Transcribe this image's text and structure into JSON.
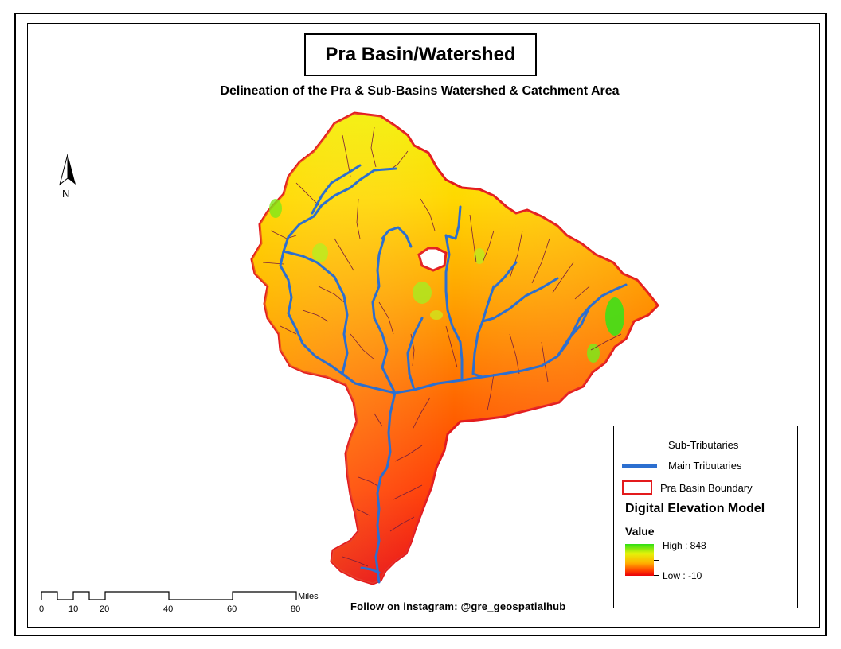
{
  "title": "Pra Basin/Watershed",
  "subtitle": "Delineation of the Pra & Sub-Basins Watershed & Catchment Area",
  "north_arrow": {
    "label": "N",
    "icon": "north-arrow-icon"
  },
  "scale_bar": {
    "labels": [
      "0",
      "10",
      "20",
      "40",
      "60",
      "80"
    ],
    "unit": "Miles"
  },
  "credit": "Follow on instagram: @gre_geospatialhub",
  "legend": {
    "sub_tributaries": "Sub-Tributaries",
    "main_tributaries": "Main Tributaries",
    "boundary": "Pra Basin Boundary",
    "dem_title": "Digital Elevation Model",
    "value_label": "Value",
    "high": "High : 848",
    "low": "Low : -10"
  },
  "colors": {
    "boundary": "#e31a1c",
    "main_tributaries": "#2c6fd0",
    "sub_tributaries": "#7a1f3c",
    "dem_high": "#2ee014",
    "dem_low": "#e8000a"
  }
}
